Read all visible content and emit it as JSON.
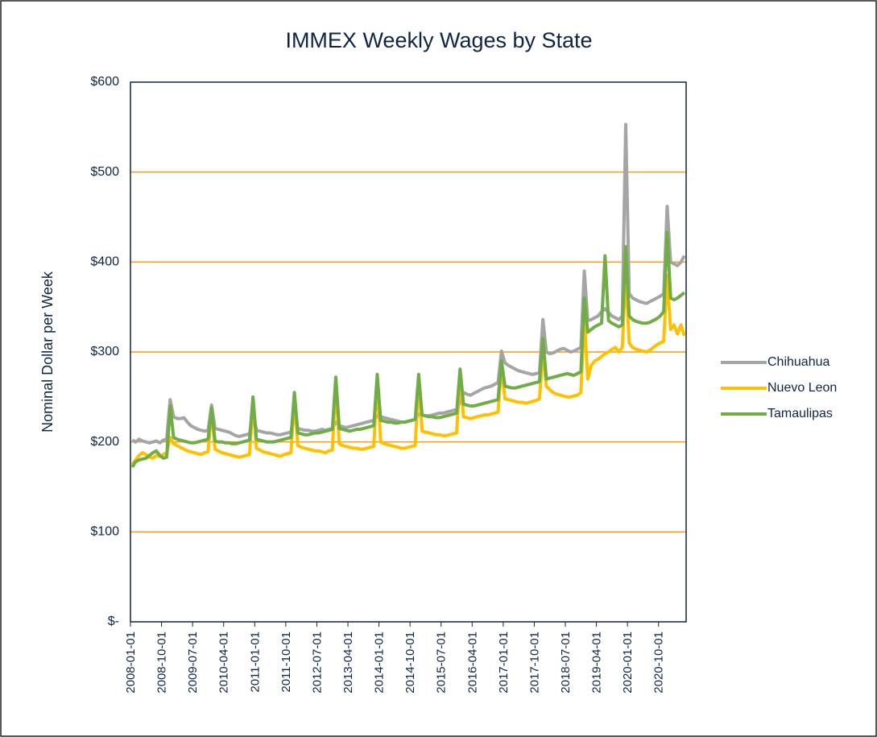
{
  "chart_data": {
    "type": "line",
    "title": "IMMEX Weekly Wages by State",
    "y_label": "Nominal Dollar per Week",
    "categories": [
      "2008-01-01",
      null,
      null,
      null,
      null,
      null,
      null,
      null,
      null,
      "2008-10-01",
      null,
      null,
      null,
      null,
      null,
      null,
      null,
      null,
      "2009-07-01",
      null,
      null,
      null,
      null,
      null,
      null,
      null,
      null,
      "2010-04-01",
      null,
      null,
      null,
      null,
      null,
      null,
      null,
      null,
      "2011-01-01",
      null,
      null,
      null,
      null,
      null,
      null,
      null,
      null,
      "2011-10-01",
      null,
      null,
      null,
      null,
      null,
      null,
      null,
      null,
      "2012-07-01",
      null,
      null,
      null,
      null,
      null,
      null,
      null,
      null,
      "2013-04-01",
      null,
      null,
      null,
      null,
      null,
      null,
      null,
      null,
      "2014-01-01",
      null,
      null,
      null,
      null,
      null,
      null,
      null,
      null,
      "2014-10-01",
      null,
      null,
      null,
      null,
      null,
      null,
      null,
      null,
      "2015-07-01",
      null,
      null,
      null,
      null,
      null,
      null,
      null,
      null,
      "2016-04-01",
      null,
      null,
      null,
      null,
      null,
      null,
      null,
      null,
      "2017-01-01",
      null,
      null,
      null,
      null,
      null,
      null,
      null,
      null,
      "2017-10-01",
      null,
      null,
      null,
      null,
      null,
      null,
      null,
      null,
      "2018-07-01",
      null,
      null,
      null,
      null,
      null,
      null,
      null,
      null,
      "2019-04-01",
      null,
      null,
      null,
      null,
      null,
      null,
      null,
      null,
      "2020-01-01",
      null,
      null,
      null,
      null,
      null,
      null,
      null,
      null,
      "2020-10-01",
      null,
      null,
      null,
      null,
      null,
      null,
      null
    ],
    "series": [
      {
        "name": "Chihuahua",
        "color": "#a5a5a5",
        "values": [
          202,
          200,
          203,
          201,
          200,
          199,
          200,
          201,
          199,
          202,
          203,
          247,
          228,
          226,
          226,
          227,
          222,
          218,
          216,
          214,
          213,
          212,
          213,
          241,
          215,
          214,
          213,
          212,
          211,
          209,
          207,
          206,
          207,
          208,
          209,
          233,
          213,
          212,
          211,
          210,
          210,
          209,
          208,
          208,
          209,
          210,
          211,
          226,
          215,
          214,
          213,
          213,
          212,
          212,
          213,
          214,
          213,
          214,
          215,
          222,
          218,
          217,
          216,
          217,
          218,
          219,
          220,
          221,
          222,
          223,
          224,
          229,
          228,
          227,
          226,
          225,
          224,
          223,
          222,
          222,
          223,
          224,
          225,
          231,
          230,
          229,
          229,
          230,
          231,
          232,
          232,
          233,
          234,
          235,
          236,
          245,
          255,
          253,
          252,
          254,
          256,
          258,
          260,
          261,
          262,
          264,
          266,
          301,
          288,
          285,
          283,
          281,
          279,
          278,
          277,
          276,
          275,
          276,
          277,
          336,
          300,
          298,
          299,
          301,
          303,
          304,
          302,
          300,
          301,
          303,
          305,
          390,
          335,
          336,
          338,
          340,
          345,
          348,
          344,
          340,
          338,
          336,
          340,
          553,
          365,
          360,
          358,
          356,
          355,
          354,
          356,
          358,
          360,
          362,
          365,
          462,
          400,
          398,
          396,
          400,
          407
        ]
      },
      {
        "name": "Nuevo Leon",
        "color": "#ffc000",
        "values": [
          175,
          180,
          185,
          188,
          186,
          183,
          182,
          185,
          184,
          186,
          188,
          205,
          198,
          196,
          194,
          192,
          190,
          189,
          188,
          187,
          186,
          188,
          189,
          236,
          192,
          190,
          188,
          187,
          186,
          185,
          184,
          183,
          184,
          185,
          186,
          245,
          193,
          191,
          189,
          188,
          187,
          186,
          185,
          184,
          186,
          187,
          188,
          250,
          196,
          194,
          193,
          192,
          191,
          190,
          190,
          189,
          188,
          190,
          191,
          265,
          198,
          196,
          195,
          194,
          193,
          193,
          192,
          192,
          193,
          194,
          195,
          270,
          200,
          198,
          197,
          196,
          195,
          194,
          193,
          193,
          194,
          195,
          196,
          270,
          212,
          211,
          210,
          209,
          208,
          208,
          207,
          207,
          208,
          209,
          210,
          275,
          228,
          227,
          226,
          227,
          228,
          229,
          230,
          230,
          231,
          232,
          233,
          285,
          248,
          247,
          246,
          245,
          244,
          244,
          243,
          244,
          245,
          246,
          248,
          300,
          262,
          258,
          255,
          253,
          252,
          251,
          250,
          250,
          251,
          252,
          255,
          340,
          270,
          285,
          290,
          292,
          295,
          298,
          300,
          303,
          305,
          300,
          305,
          390,
          310,
          305,
          303,
          302,
          301,
          300,
          302,
          305,
          308,
          310,
          312,
          385,
          325,
          330,
          320,
          330,
          318
        ]
      },
      {
        "name": "Tamaulipas",
        "color": "#70ad47",
        "values": [
          172,
          178,
          180,
          181,
          182,
          185,
          188,
          190,
          185,
          182,
          183,
          240,
          205,
          203,
          202,
          201,
          200,
          199,
          199,
          200,
          201,
          202,
          203,
          238,
          201,
          200,
          200,
          199,
          199,
          198,
          198,
          199,
          200,
          201,
          202,
          250,
          203,
          202,
          201,
          200,
          200,
          200,
          201,
          202,
          203,
          204,
          205,
          255,
          210,
          209,
          208,
          208,
          209,
          210,
          210,
          211,
          212,
          213,
          214,
          272,
          215,
          214,
          213,
          212,
          213,
          214,
          214,
          215,
          216,
          217,
          218,
          275,
          224,
          223,
          222,
          222,
          221,
          221,
          222,
          222,
          223,
          224,
          225,
          275,
          230,
          229,
          228,
          228,
          227,
          227,
          228,
          229,
          230,
          231,
          232,
          281,
          242,
          241,
          240,
          240,
          241,
          242,
          243,
          244,
          245,
          246,
          247,
          290,
          262,
          261,
          260,
          260,
          261,
          262,
          263,
          264,
          265,
          266,
          267,
          315,
          270,
          271,
          272,
          273,
          274,
          275,
          276,
          275,
          274,
          276,
          278,
          360,
          322,
          325,
          328,
          330,
          332,
          407,
          335,
          332,
          330,
          328,
          330,
          417,
          340,
          336,
          334,
          333,
          332,
          332,
          333,
          335,
          337,
          340,
          345,
          433,
          360,
          358,
          360,
          363,
          366
        ]
      }
    ],
    "ylim": [
      0,
      600
    ],
    "yticks": [
      {
        "value": 0,
        "label": "$-"
      },
      {
        "value": 100,
        "label": "$100"
      },
      {
        "value": 200,
        "label": "$200"
      },
      {
        "value": 300,
        "label": "$300"
      },
      {
        "value": 400,
        "label": "$400"
      },
      {
        "value": 500,
        "label": "$500"
      },
      {
        "value": 600,
        "label": "$600"
      }
    ],
    "grid": true,
    "grid_color": "#f59c1a",
    "legend": "right"
  }
}
